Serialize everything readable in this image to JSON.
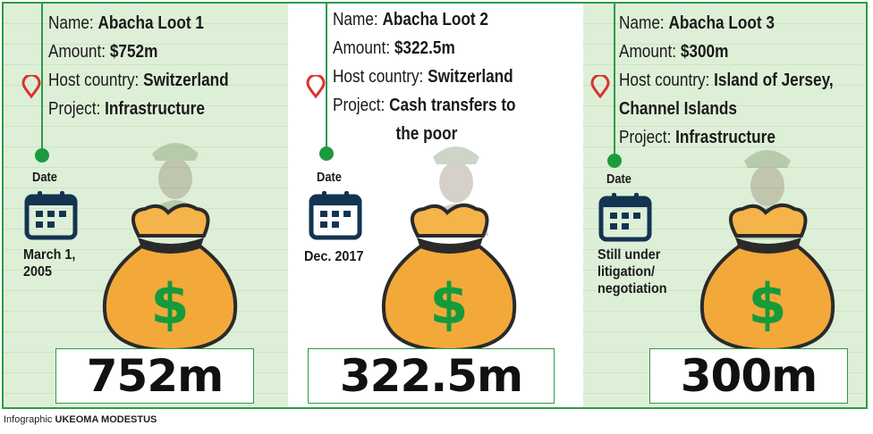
{
  "labels": {
    "name": "Name:",
    "amount": "Amount:",
    "host": "Host country:",
    "project": "Project:",
    "date": "Date"
  },
  "loots": [
    {
      "name": "Abacha Loot 1",
      "amount": "$752m",
      "host": "Switzerland",
      "project": "Infrastructure",
      "date_line1": "March 1,",
      "date_line2": "2005",
      "total": "752m"
    },
    {
      "name": "Abacha Loot 2",
      "amount": "$322.5m",
      "host": "Switzerland",
      "project_line1": "Cash transfers to",
      "project_line2": "the poor",
      "date_line1": "Dec. 2017",
      "total": "322.5m"
    },
    {
      "name": "Abacha Loot 3",
      "amount": "$300m",
      "host_line1": "Island of Jersey,",
      "host_line2": "Channel Islands",
      "project": "Infrastructure",
      "date_line1": "Still under",
      "date_line2": "litigation/",
      "date_line3": "negotiation",
      "total": "300m"
    }
  ],
  "credit": {
    "prefix": "Infographic",
    "author": "UKEOMA MODESTUS"
  },
  "icons": [
    "location-pin-icon",
    "calendar-icon",
    "money-bag-icon",
    "dollar-sign-icon",
    "portrait-image"
  ],
  "colors": {
    "accent_green": "#2e9a4a",
    "panel_tint": "#deefd7",
    "pin_red": "#d9332e",
    "bag_orange": "#f2a93a",
    "dollar_green": "#159a3c"
  }
}
